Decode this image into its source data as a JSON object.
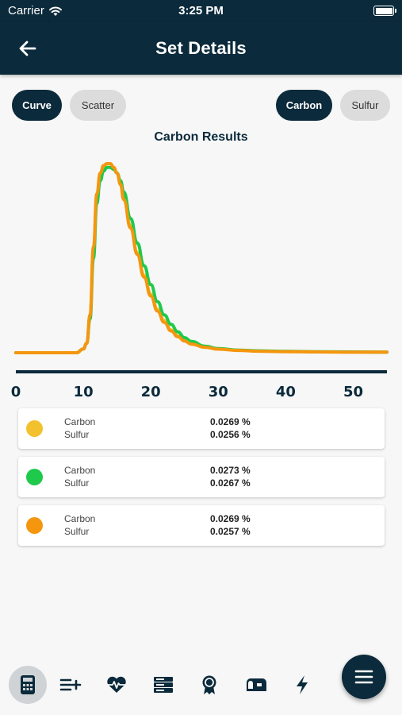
{
  "status_bar": {
    "carrier": "Carrier",
    "time": "3:25 PM"
  },
  "header": {
    "title": "Set Details",
    "back_icon": "arrow-left-icon"
  },
  "chips": {
    "chart_type": [
      {
        "label": "Curve",
        "active": true
      },
      {
        "label": "Scatter",
        "active": false
      }
    ],
    "element": [
      {
        "label": "Carbon",
        "active": true
      },
      {
        "label": "Sulfur",
        "active": false
      }
    ]
  },
  "chart_data": {
    "type": "line",
    "title": "Carbon Results",
    "xlabel": "",
    "ylabel": "",
    "xlim": [
      0,
      55
    ],
    "ylim": [
      0,
      1
    ],
    "x_ticks": [
      "0",
      "10",
      "20",
      "30",
      "40",
      "50"
    ],
    "grid": false,
    "legend": "none",
    "x": [
      0,
      2,
      4,
      6,
      8,
      9,
      10,
      10.5,
      11,
      11.5,
      12,
      12.5,
      13,
      13.5,
      14,
      14.5,
      15,
      15.5,
      16,
      17,
      18,
      19,
      20,
      21,
      22,
      23,
      24,
      25,
      26,
      28,
      30,
      33,
      36,
      40,
      45,
      50,
      55
    ],
    "series": [
      {
        "color": "#f2c12e",
        "values": [
          0.0,
          0.0,
          0.0,
          0.0,
          0.0,
          0.0,
          0.02,
          0.05,
          0.2,
          0.55,
          0.83,
          0.94,
          0.98,
          1.0,
          1.0,
          0.98,
          0.95,
          0.9,
          0.82,
          0.67,
          0.53,
          0.41,
          0.31,
          0.23,
          0.17,
          0.12,
          0.09,
          0.065,
          0.048,
          0.03,
          0.02,
          0.013,
          0.009,
          0.006,
          0.004,
          0.003,
          0.003
        ]
      },
      {
        "color": "#1ec94b",
        "values": [
          0.0,
          0.0,
          0.0,
          0.0,
          0.0,
          0.0,
          0.02,
          0.05,
          0.18,
          0.5,
          0.79,
          0.91,
          0.96,
          0.98,
          0.98,
          0.97,
          0.95,
          0.91,
          0.85,
          0.71,
          0.58,
          0.46,
          0.36,
          0.27,
          0.2,
          0.15,
          0.11,
          0.08,
          0.06,
          0.035,
          0.022,
          0.014,
          0.01,
          0.007,
          0.005,
          0.004,
          0.003
        ]
      },
      {
        "color": "#f5960f",
        "values": [
          0.0,
          0.0,
          0.0,
          0.0,
          0.0,
          0.0,
          0.02,
          0.05,
          0.2,
          0.56,
          0.84,
          0.95,
          0.99,
          1.0,
          1.0,
          0.98,
          0.95,
          0.89,
          0.81,
          0.66,
          0.52,
          0.4,
          0.3,
          0.22,
          0.16,
          0.115,
          0.085,
          0.062,
          0.046,
          0.029,
          0.019,
          0.012,
          0.008,
          0.006,
          0.004,
          0.003,
          0.003
        ]
      }
    ]
  },
  "results": [
    {
      "color": "#f2c12e",
      "label_carbon": "Carbon",
      "label_sulfur": "Sulfur",
      "carbon": "0.0269 %",
      "sulfur": "0.0256 %"
    },
    {
      "color": "#1ec94b",
      "label_carbon": "Carbon",
      "label_sulfur": "Sulfur",
      "carbon": "0.0273 %",
      "sulfur": "0.0267 %"
    },
    {
      "color": "#f5960f",
      "label_carbon": "Carbon",
      "label_sulfur": "Sulfur",
      "carbon": "0.0269 %",
      "sulfur": "0.0257 %"
    }
  ],
  "bottom_nav": [
    {
      "icon": "calculator-icon",
      "active": true
    },
    {
      "icon": "list-add-icon",
      "active": false
    },
    {
      "icon": "heart-pulse-icon",
      "active": false
    },
    {
      "icon": "server-icon",
      "active": false
    },
    {
      "icon": "award-ribbon-icon",
      "active": false
    },
    {
      "icon": "mailbox-icon",
      "active": false
    },
    {
      "icon": "lightning-icon",
      "active": false
    }
  ],
  "fab": {
    "icon": "menu-icon"
  }
}
